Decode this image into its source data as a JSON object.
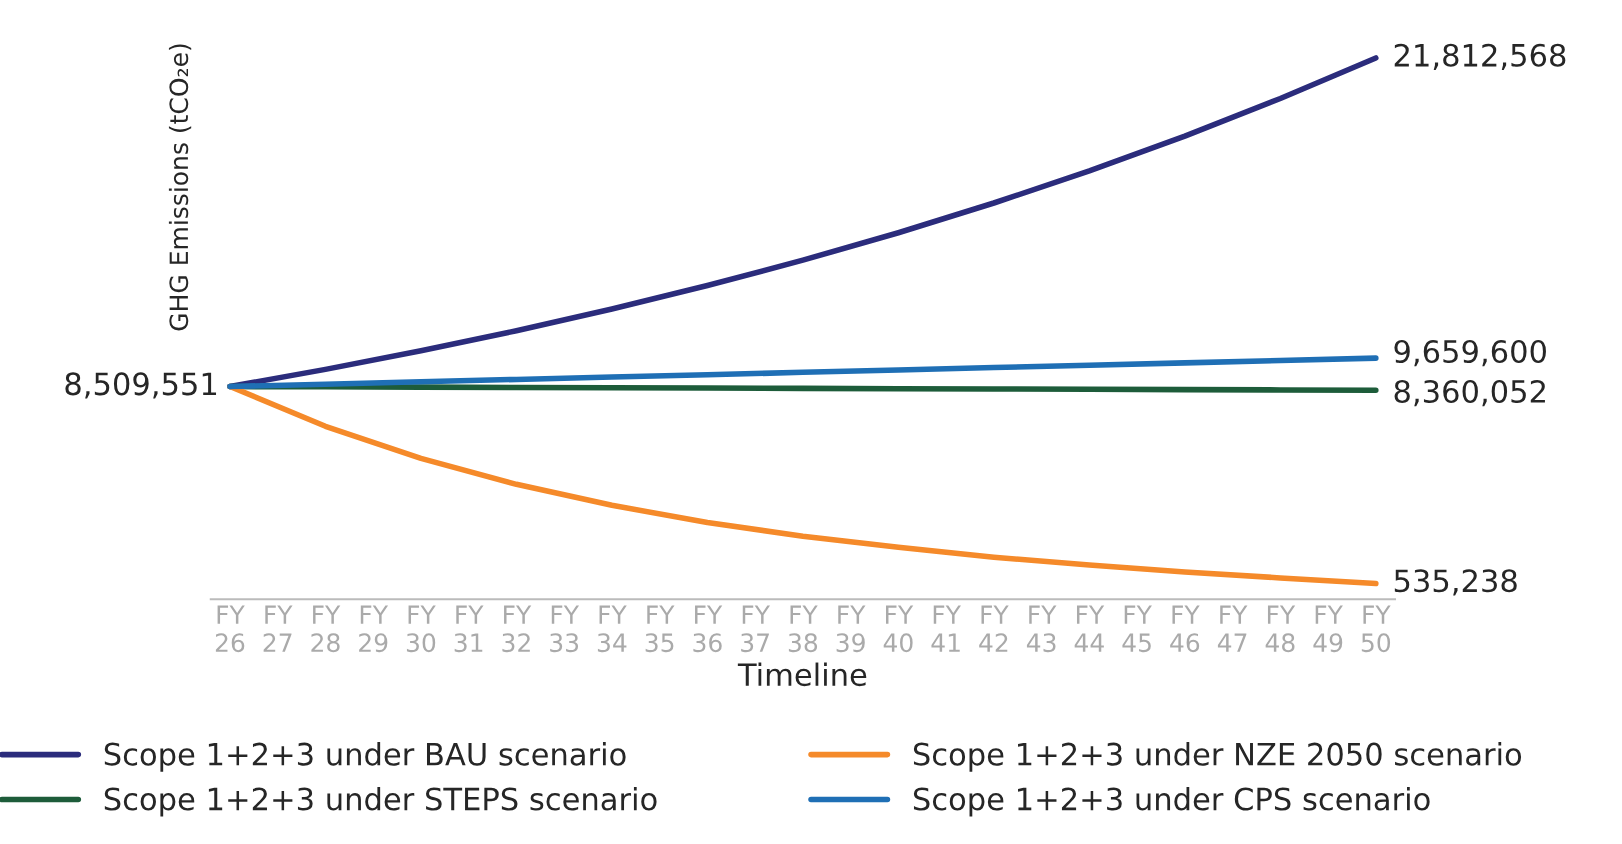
{
  "chart_data": {
    "type": "line",
    "xlabel": "Timeline",
    "ylabel": "GHG Emissions (tCO₂e)",
    "categories": [
      "FY\n26",
      "FY\n27",
      "FY\n28",
      "FY\n29",
      "FY\n30",
      "FY\n31",
      "FY\n32",
      "FY\n33",
      "FY\n34",
      "FY\n35",
      "FY\n36",
      "FY\n37",
      "FY\n38",
      "FY\n39",
      "FY\n40",
      "FY\n41",
      "FY\n42",
      "FY\n43",
      "FY\n44",
      "FY\n45",
      "FY\n46",
      "FY\n47",
      "FY\n48",
      "FY\n49",
      "FY\n50"
    ],
    "tick_labels": "x",
    "legend": "bottom",
    "grid": false,
    "marker": "none",
    "line_style": "solid",
    "series": [
      {
        "name": "Scope 1+2+3 under BAU scenario",
        "color": "#2b2c7c",
        "values": [
          8509551,
          null,
          9204000,
          null,
          9955000,
          null,
          10768000,
          null,
          11647000,
          null,
          12597000,
          null,
          13625000,
          null,
          14737000,
          null,
          15940000,
          null,
          17241000,
          null,
          18648000,
          null,
          20170000,
          null,
          21812568
        ],
        "value_labels": [
          "8,509,551",
          null,
          null,
          null,
          null,
          null,
          null,
          null,
          null,
          null,
          null,
          null,
          null,
          null,
          null,
          null,
          null,
          null,
          null,
          null,
          null,
          null,
          null,
          null,
          "21,812,568"
        ]
      },
      {
        "name": "Scope 1+2+3 under STEPS scenario",
        "color": "#1d5c3a",
        "values": [
          8509551,
          null,
          8497000,
          null,
          8485000,
          null,
          8472000,
          null,
          8460000,
          null,
          8447000,
          null,
          8435000,
          null,
          8422000,
          null,
          8410000,
          null,
          8397000,
          null,
          8385000,
          null,
          8372000,
          null,
          8360052
        ],
        "value_labels": [
          null,
          null,
          null,
          null,
          null,
          null,
          null,
          null,
          null,
          null,
          null,
          null,
          null,
          null,
          null,
          null,
          null,
          null,
          null,
          null,
          null,
          null,
          null,
          null,
          "8,360,052"
        ]
      },
      {
        "name": "Scope 1+2+3 under NZE 2050 scenario",
        "color": "#f58a2a",
        "values": [
          8509551,
          null,
          6900000,
          null,
          5600000,
          null,
          4550000,
          null,
          3700000,
          null,
          3000000,
          null,
          2450000,
          null,
          2000000,
          null,
          1600000,
          null,
          1280000,
          null,
          1000000,
          null,
          760000,
          null,
          535238
        ],
        "value_labels": [
          null,
          null,
          null,
          null,
          null,
          null,
          null,
          null,
          null,
          null,
          null,
          null,
          null,
          null,
          null,
          null,
          null,
          null,
          null,
          null,
          null,
          null,
          null,
          null,
          "535,238"
        ]
      },
      {
        "name": "Scope 1+2+3 under CPS scenario",
        "color": "#1f6fb5",
        "values": [
          8509551,
          null,
          8605000,
          null,
          8701000,
          null,
          8797000,
          null,
          8893000,
          null,
          8988000,
          null,
          9084000,
          null,
          9180000,
          null,
          9276000,
          null,
          9372000,
          null,
          9468000,
          null,
          9564000,
          null,
          9659600
        ],
        "value_labels": [
          null,
          null,
          null,
          null,
          null,
          null,
          null,
          null,
          null,
          null,
          null,
          null,
          null,
          null,
          null,
          null,
          null,
          null,
          null,
          null,
          null,
          null,
          null,
          null,
          "9,659,600"
        ]
      }
    ]
  }
}
